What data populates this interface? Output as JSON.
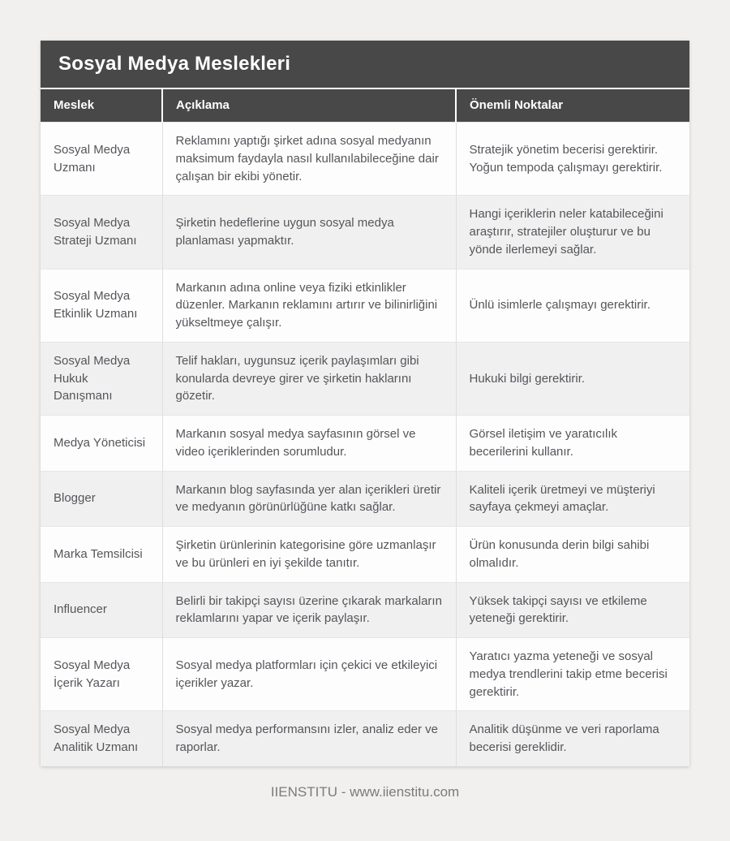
{
  "page": {
    "title": "Sosyal Medya Meslekleri",
    "footer": "IIENSTITU - www.iienstitu.com"
  },
  "colors": {
    "header_bg": "#484848",
    "page_bg": "#f1f0ee",
    "row_bg": "#fdfdfd",
    "row_alt_bg": "#f0f0f0",
    "body_text": "#54565a",
    "header_text": "#ffffff"
  },
  "table": {
    "columns": [
      "Meslek",
      "Açıklama",
      "Önemli Noktalar"
    ],
    "rows": [
      {
        "meslek": "Sosyal Medya Uzmanı",
        "aciklama": "Reklamını yaptığı şirket adına sosyal medyanın maksimum faydayla nasıl kullanılabileceğine dair çalışan bir ekibi yönetir.",
        "onemli_noktalar": "Stratejik yönetim becerisi gerektirir. Yoğun tempoda çalışmayı gerektirir."
      },
      {
        "meslek": "Sosyal Medya Strateji Uzmanı",
        "aciklama": "Şirketin hedeflerine uygun sosyal medya planlaması yapmaktır.",
        "onemli_noktalar": "Hangi içeriklerin neler katabileceğini araştırır, stratejiler oluşturur ve bu yönde ilerlemeyi sağlar."
      },
      {
        "meslek": "Sosyal Medya Etkinlik Uzmanı",
        "aciklama": "Markanın adına online veya fiziki etkinlikler düzenler. Markanın reklamını artırır ve bilinirliğini yükseltmeye çalışır.",
        "onemli_noktalar": "Ünlü isimlerle çalışmayı gerektirir."
      },
      {
        "meslek": "Sosyal Medya Hukuk Danışmanı",
        "aciklama": "Telif hakları, uygunsuz içerik paylaşımları gibi konularda devreye girer ve şirketin haklarını gözetir.",
        "onemli_noktalar": "Hukuki bilgi gerektirir."
      },
      {
        "meslek": "Medya Yöneticisi",
        "aciklama": "Markanın sosyal medya sayfasının görsel ve video içeriklerinden sorumludur.",
        "onemli_noktalar": "Görsel iletişim ve yaratıcılık becerilerini kullanır."
      },
      {
        "meslek": "Blogger",
        "aciklama": "Markanın blog sayfasında yer alan içerikleri üretir ve medyanın görünürlüğüne katkı sağlar.",
        "onemli_noktalar": "Kaliteli içerik üretmeyi ve müşteriyi sayfaya çekmeyi amaçlar."
      },
      {
        "meslek": "Marka Temsilcisi",
        "aciklama": "Şirketin ürünlerinin kategorisine göre uzmanlaşır ve bu ürünleri en iyi şekilde tanıtır.",
        "onemli_noktalar": "Ürün konusunda derin bilgi sahibi olmalıdır."
      },
      {
        "meslek": "Influencer",
        "aciklama": "Belirli bir takipçi sayısı üzerine çıkarak markaların reklamlarını yapar ve içerik paylaşır.",
        "onemli_noktalar": "Yüksek takipçi sayısı ve etkileme yeteneği gerektirir."
      },
      {
        "meslek": "Sosyal Medya İçerik Yazarı",
        "aciklama": "Sosyal medya platformları için çekici ve etkileyici içerikler yazar.",
        "onemli_noktalar": "Yaratıcı yazma yeteneği ve sosyal medya trendlerini takip etme becerisi gerektirir."
      },
      {
        "meslek": "Sosyal Medya Analitik Uzmanı",
        "aciklama": "Sosyal medya performansını izler, analiz eder ve raporlar.",
        "onemli_noktalar": "Analitik düşünme ve veri raporlama becerisi gereklidir."
      }
    ]
  }
}
